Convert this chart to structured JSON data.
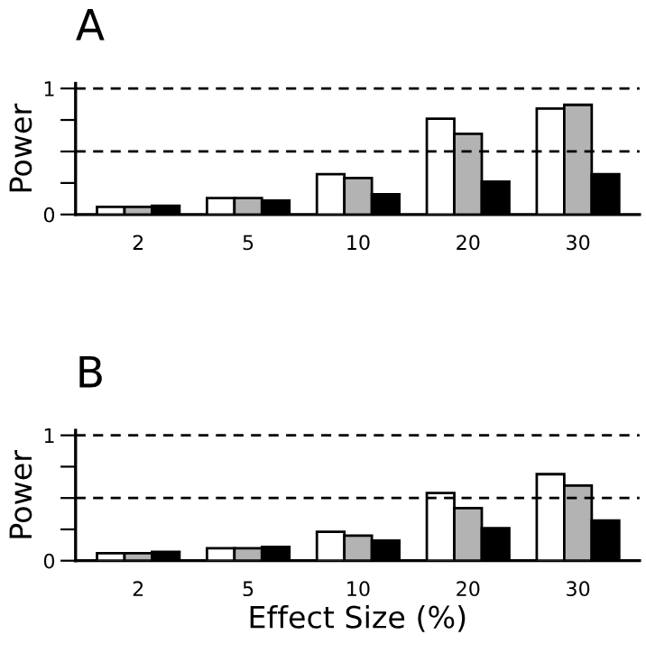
{
  "chart_data": [
    {
      "type": "bar",
      "title": "A",
      "categories": [
        "2",
        "5",
        "10",
        "20",
        "30"
      ],
      "series": [
        {
          "color": "#ffffff",
          "values": [
            0.06,
            0.13,
            0.32,
            0.76,
            0.84
          ]
        },
        {
          "color": "#b3b3b3",
          "values": [
            0.06,
            0.13,
            0.29,
            0.64,
            0.87
          ]
        },
        {
          "color": "#000000",
          "values": [
            0.07,
            0.11,
            0.16,
            0.26,
            0.32
          ]
        }
      ],
      "ylabel": "Power",
      "ylim": [
        0,
        1.04
      ],
      "yticks": [
        0,
        {
          "value": 0.25,
          "label": null
        },
        {
          "value": 0.5,
          "label": null
        },
        {
          "value": 0.75,
          "label": null
        },
        1
      ],
      "ref_lines": [
        {
          "axis": "y",
          "value": 1,
          "line_style": "dashed"
        },
        {
          "axis": "y",
          "value": 0.5,
          "line_style": "dashed"
        }
      ]
    },
    {
      "type": "bar",
      "title": "B",
      "categories": [
        "2",
        "5",
        "10",
        "20",
        "30"
      ],
      "series": [
        {
          "color": "#ffffff",
          "values": [
            0.06,
            0.1,
            0.23,
            0.54,
            0.69
          ]
        },
        {
          "color": "#b3b3b3",
          "values": [
            0.06,
            0.1,
            0.2,
            0.42,
            0.6
          ]
        },
        {
          "color": "#000000",
          "values": [
            0.07,
            0.11,
            0.16,
            0.26,
            0.32
          ]
        }
      ],
      "xlabel": "Effect Size (%)",
      "ylabel": "Power",
      "ylim": [
        0,
        1.04
      ],
      "yticks": [
        0,
        {
          "value": 0.25,
          "label": null
        },
        {
          "value": 0.5,
          "label": null
        },
        {
          "value": 0.75,
          "label": null
        },
        1
      ],
      "ref_lines": [
        {
          "axis": "y",
          "value": 1,
          "line_style": "dashed"
        },
        {
          "axis": "y",
          "value": 0.5,
          "line_style": "dashed"
        }
      ]
    }
  ]
}
